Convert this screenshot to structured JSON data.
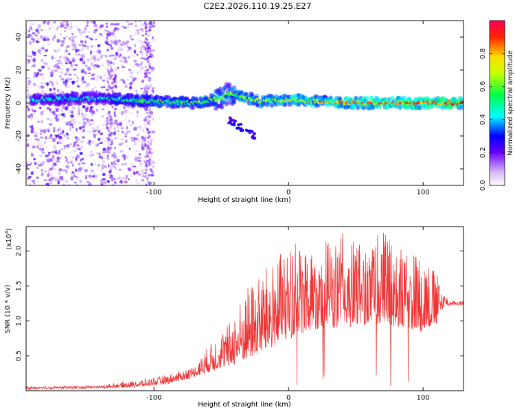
{
  "title": "C2E2.2026.110.19.25.E27",
  "chart_data": [
    {
      "type": "heatmap",
      "xlabel": "Height of straight line (km)",
      "ylabel": "Frequency (Hz)",
      "xlim": [
        -195,
        130
      ],
      "ylim": [
        -50,
        50
      ],
      "x_ticks": [
        -100,
        0,
        100
      ],
      "y_ticks": [
        -40,
        -20,
        0,
        20,
        40
      ],
      "colorbar": {
        "label": "Normalized spectral amplitude",
        "range": [
          0,
          1
        ],
        "ticks": [
          0.0,
          0.2,
          0.4,
          0.6,
          0.8
        ],
        "tick_labels": [
          "0.0",
          "0.2",
          "0.4",
          "0.6",
          "0.8"
        ]
      },
      "band_center_hz": [
        [
          -190,
          2
        ],
        [
          -150,
          3
        ],
        [
          -120,
          2
        ],
        [
          -100,
          1
        ],
        [
          -70,
          0
        ],
        [
          -50,
          3
        ],
        [
          -45,
          6
        ],
        [
          -35,
          4
        ],
        [
          -20,
          1
        ],
        [
          0,
          2
        ],
        [
          20,
          1
        ],
        [
          50,
          0
        ],
        [
          100,
          0
        ],
        [
          110,
          0
        ],
        [
          128,
          0
        ]
      ],
      "side_feature": {
        "x": [
          -45,
          -25
        ],
        "freq": [
          -10,
          -20
        ]
      }
    },
    {
      "type": "line",
      "xlabel": "Height of straight line (km)",
      "ylabel": "SNR (10 * v/v)",
      "y_multiplier": "(x10^4)",
      "xlim": [
        -195,
        130
      ],
      "ylim": [
        0,
        2.35
      ],
      "x_ticks": [
        -100,
        0,
        100
      ],
      "y_ticks": [
        0.5,
        1.0,
        1.5,
        2.0
      ],
      "color": "#ee3333",
      "envelope": {
        "x": [
          -195,
          -140,
          -110,
          -90,
          -70,
          -55,
          -45,
          -30,
          -15,
          0,
          15,
          25,
          40,
          55,
          70,
          85,
          100,
          110,
          115,
          120,
          130
        ],
        "base": [
          0.03,
          0.04,
          0.06,
          0.1,
          0.2,
          0.3,
          0.35,
          0.45,
          0.6,
          0.75,
          0.85,
          0.9,
          0.9,
          0.95,
          0.95,
          0.9,
          0.85,
          0.95,
          1.2,
          1.25,
          1.25
        ],
        "peak": [
          0.05,
          0.07,
          0.15,
          0.22,
          0.35,
          0.75,
          0.95,
          1.5,
          1.8,
          2.05,
          2.2,
          2.15,
          2.25,
          2.1,
          2.3,
          2.0,
          2.0,
          1.7,
          1.4,
          1.3,
          1.28
        ]
      }
    }
  ]
}
